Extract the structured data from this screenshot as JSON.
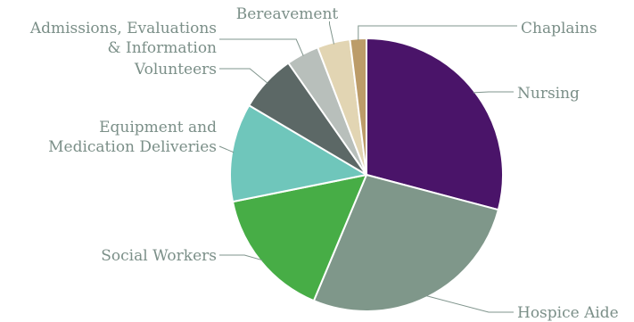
{
  "chart_data": {
    "type": "pie",
    "title": "",
    "legend": "none",
    "slices": [
      {
        "label": "Nursing",
        "lines": [
          "Nursing"
        ],
        "value": 30,
        "color": "#4a1469"
      },
      {
        "label": "Hospice Aide",
        "lines": [
          "Hospice Aide"
        ],
        "value": 28,
        "color": "#7f978a"
      },
      {
        "label": "Social Workers",
        "lines": [
          "Social Workers"
        ],
        "value": 16,
        "color": "#47ad46"
      },
      {
        "label": "Equipment and Medication Deliveries",
        "lines": [
          "Equipment and",
          "Medication Deliveries"
        ],
        "value": 12,
        "color": "#6fc6bb"
      },
      {
        "label": "Volunteers",
        "lines": [
          "Volunteers"
        ],
        "value": 7,
        "color": "#5c6866"
      },
      {
        "label": "Admissions, Evaluations & Information",
        "lines": [
          "Admissions, Evaluations",
          "& Information"
        ],
        "value": 4,
        "color": "#b8bfbb"
      },
      {
        "label": "Bereavement",
        "lines": [
          "Bereavement"
        ],
        "value": 4,
        "color": "#e2d5b3"
      },
      {
        "label": "Chaplains",
        "lines": [
          "Chaplains"
        ],
        "value": 2,
        "color": "#bc9c69"
      }
    ]
  }
}
